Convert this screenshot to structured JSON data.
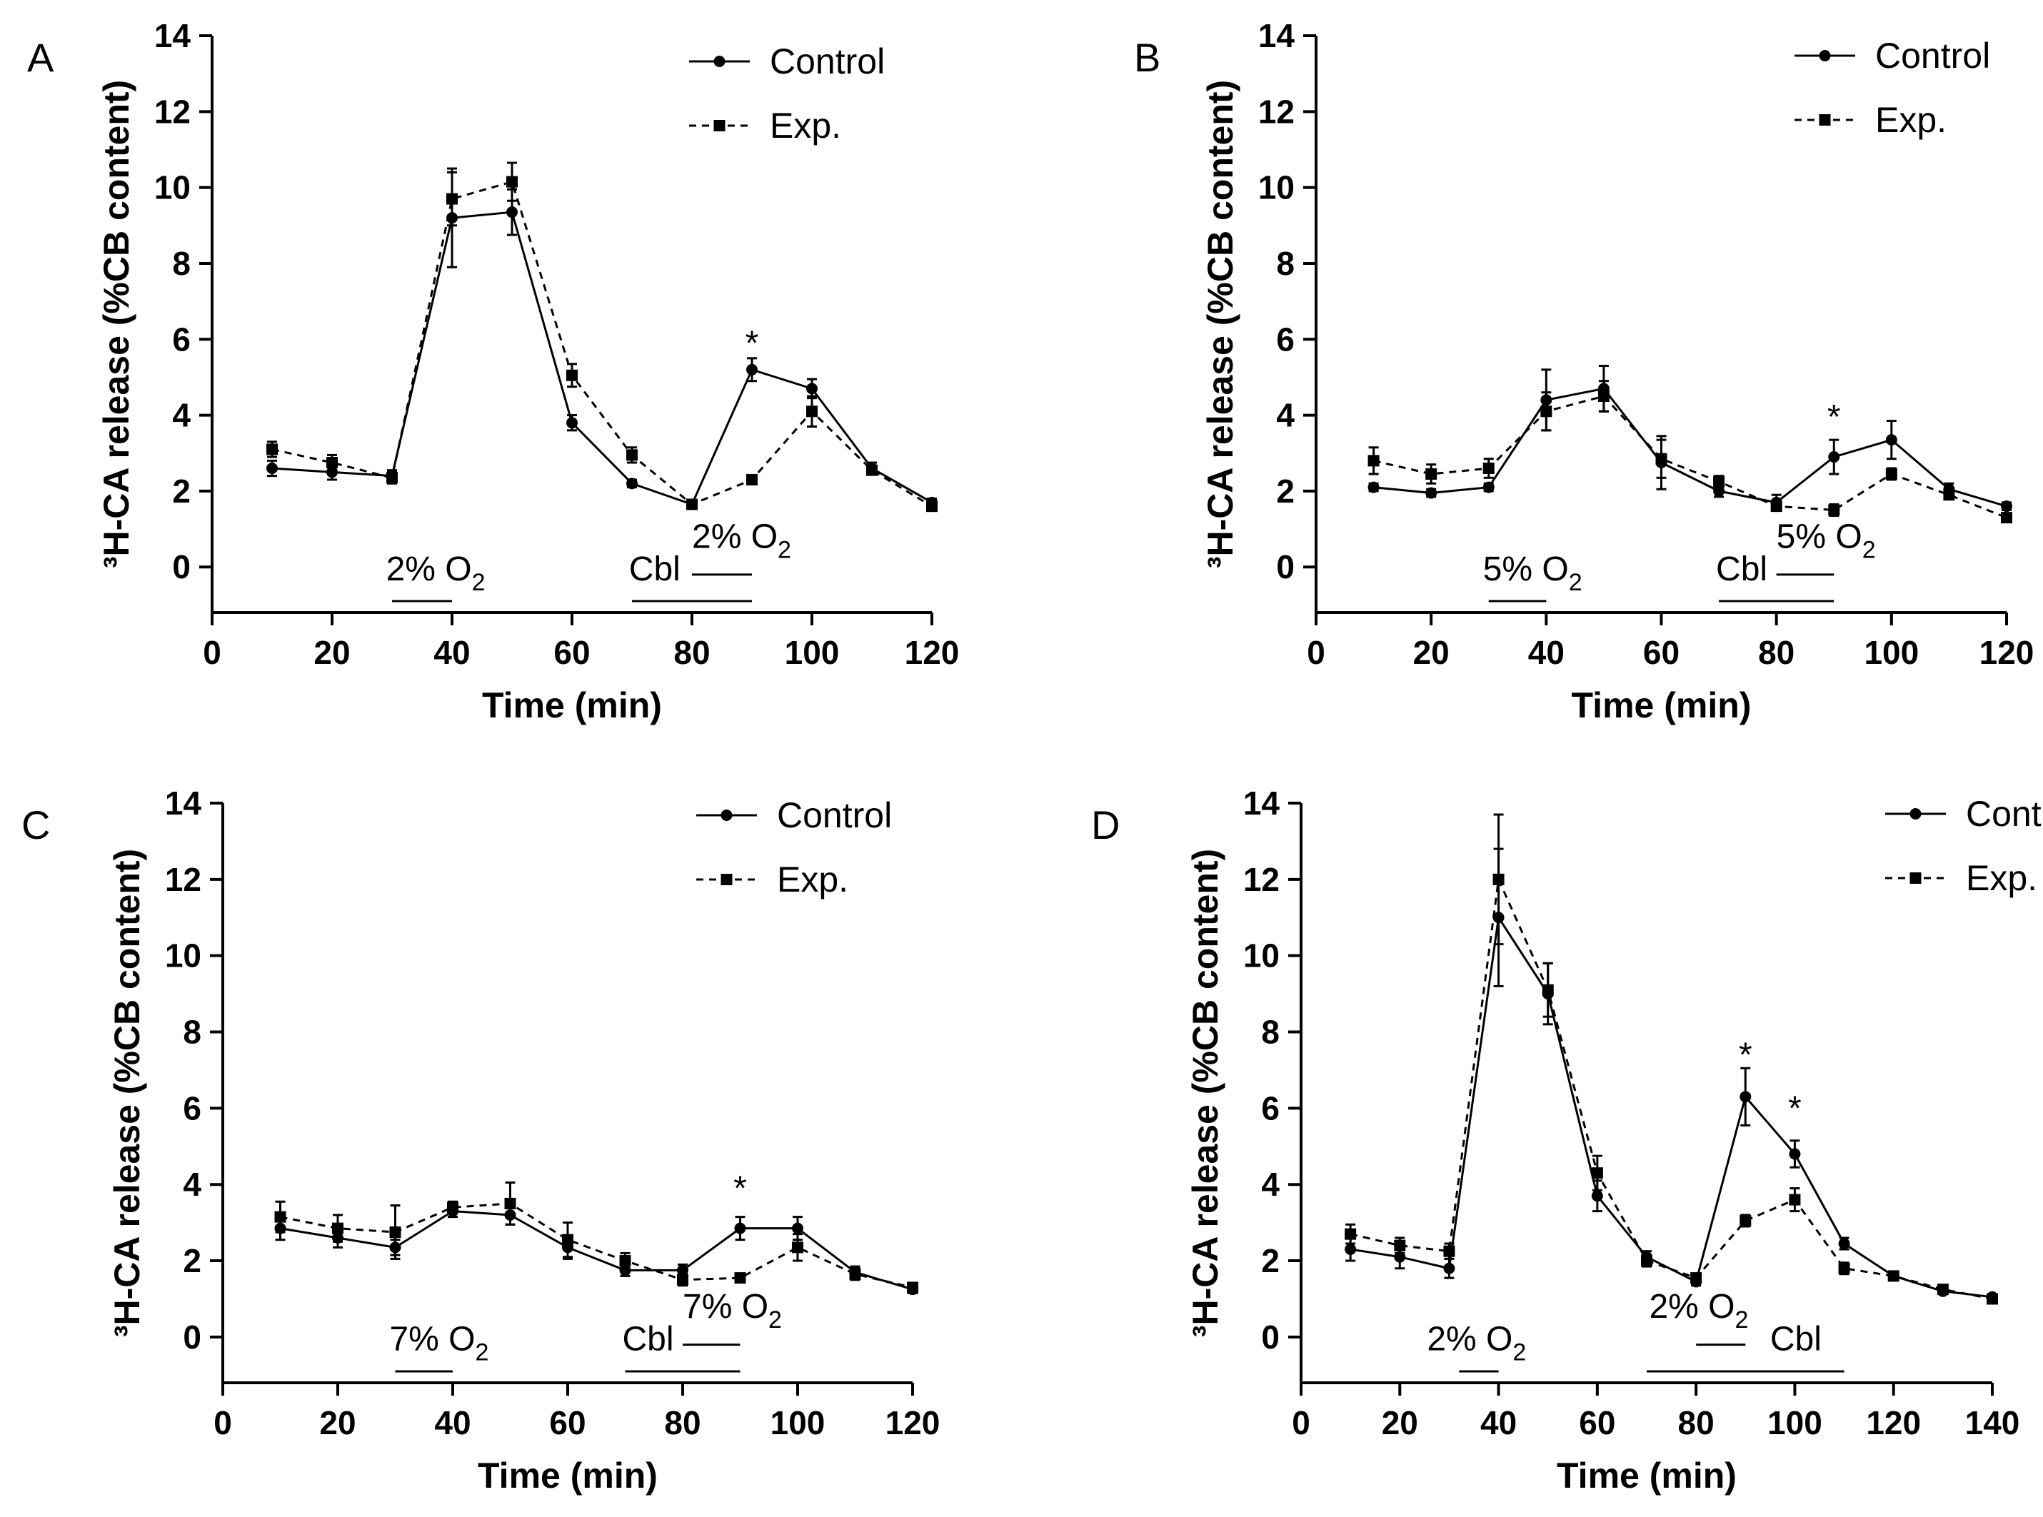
{
  "chart_data": [
    {
      "panel": "A",
      "type": "line",
      "xlabel": "Time (min)",
      "ylabel": "³H-CA release (%CB content)",
      "xlim": [
        0,
        120
      ],
      "ylim": [
        -1.2,
        14
      ],
      "xticks": [
        0,
        20,
        40,
        60,
        80,
        100,
        120
      ],
      "yticks": [
        0,
        2,
        4,
        6,
        8,
        10,
        12,
        14
      ],
      "x": [
        10,
        20,
        30,
        40,
        50,
        60,
        70,
        80,
        90,
        100,
        110,
        120
      ],
      "series": [
        {
          "name": "Control",
          "style": "solid",
          "marker": "circle",
          "values": [
            2.6,
            2.5,
            2.4,
            9.2,
            9.35,
            3.8,
            2.2,
            1.65,
            5.2,
            4.7,
            2.6,
            1.7
          ],
          "errors": [
            0.2,
            0.2,
            0.15,
            1.3,
            0.6,
            0.2,
            0.1,
            0.05,
            0.3,
            0.25,
            0.15,
            0.1
          ]
        },
        {
          "name": "Exp.",
          "style": "dashed",
          "marker": "square",
          "values": [
            3.1,
            2.75,
            2.35,
            9.7,
            10.15,
            5.05,
            2.95,
            1.65,
            2.3,
            4.1,
            2.55,
            1.6
          ],
          "errors": [
            0.2,
            0.2,
            0.15,
            0.7,
            0.5,
            0.3,
            0.2,
            0.05,
            0.1,
            0.4,
            0.1,
            0.1
          ]
        }
      ],
      "stars": [
        {
          "x": 90,
          "y": 5.9
        }
      ],
      "bars": [
        {
          "x0": 30,
          "x1": 40,
          "y": -0.9,
          "label": "2% O",
          "sub": "2",
          "lx": 29,
          "ly": -0.35
        },
        {
          "x0": 70,
          "x1": 90,
          "y": -0.9,
          "label": "Cbl",
          "sub": "",
          "lx": 69.5,
          "ly": -0.35
        },
        {
          "x0": 80,
          "x1": 90,
          "y": -0.2,
          "label": "2% O",
          "sub": "2",
          "lx": 80,
          "ly": 0.5
        }
      ]
    },
    {
      "panel": "B",
      "type": "line",
      "xlabel": "Time (min)",
      "ylabel": "³H-CA release (%CB content)",
      "xlim": [
        0,
        120
      ],
      "ylim": [
        -1.2,
        14
      ],
      "xticks": [
        0,
        20,
        40,
        60,
        80,
        100,
        120
      ],
      "yticks": [
        0,
        2,
        4,
        6,
        8,
        10,
        12,
        14
      ],
      "x": [
        10,
        20,
        30,
        40,
        50,
        60,
        70,
        80,
        90,
        100,
        110,
        120
      ],
      "series": [
        {
          "name": "Control",
          "style": "solid",
          "marker": "circle",
          "values": [
            2.1,
            1.95,
            2.1,
            4.4,
            4.7,
            2.75,
            2.0,
            1.7,
            2.9,
            3.35,
            2.05,
            1.6
          ],
          "errors": [
            0.1,
            0.1,
            0.1,
            0.8,
            0.6,
            0.7,
            0.15,
            0.2,
            0.45,
            0.5,
            0.15,
            0.1
          ]
        },
        {
          "name": "Exp.",
          "style": "dashed",
          "marker": "square",
          "values": [
            2.8,
            2.45,
            2.6,
            4.1,
            4.5,
            2.85,
            2.25,
            1.6,
            1.5,
            2.45,
            1.9,
            1.3
          ],
          "errors": [
            0.35,
            0.25,
            0.25,
            0.5,
            0.4,
            0.5,
            0.15,
            0.1,
            0.15,
            0.15,
            0.1,
            0.1
          ]
        }
      ],
      "stars": [
        {
          "x": 90,
          "y": 3.95
        }
      ],
      "bars": [
        {
          "x0": 30,
          "x1": 40,
          "y": -0.9,
          "label": "5% O",
          "sub": "2",
          "lx": 29,
          "ly": -0.35
        },
        {
          "x0": 70,
          "x1": 90,
          "y": -0.9,
          "label": "Cbl",
          "sub": "",
          "lx": 69.5,
          "ly": -0.35
        },
        {
          "x0": 80,
          "x1": 90,
          "y": -0.2,
          "label": "5% O",
          "sub": "2",
          "lx": 80,
          "ly": 0.5
        }
      ]
    },
    {
      "panel": "C",
      "type": "line",
      "xlabel": "Time (min)",
      "ylabel": "³H-CA release (%CB content)",
      "xlim": [
        0,
        120
      ],
      "ylim": [
        -1.2,
        14
      ],
      "xticks": [
        0,
        20,
        40,
        60,
        80,
        100,
        120
      ],
      "yticks": [
        0,
        2,
        4,
        6,
        8,
        10,
        12,
        14
      ],
      "x": [
        10,
        20,
        30,
        40,
        50,
        60,
        70,
        80,
        90,
        100,
        110,
        120
      ],
      "series": [
        {
          "name": "Control",
          "style": "solid",
          "marker": "circle",
          "values": [
            2.85,
            2.6,
            2.35,
            3.3,
            3.2,
            2.35,
            1.75,
            1.75,
            2.85,
            2.85,
            1.7,
            1.25
          ],
          "errors": [
            0.3,
            0.25,
            0.2,
            0.15,
            0.25,
            0.3,
            0.15,
            0.15,
            0.3,
            0.3,
            0.15,
            0.1
          ]
        },
        {
          "name": "Exp.",
          "style": "dashed",
          "marker": "square",
          "values": [
            3.15,
            2.85,
            2.75,
            3.4,
            3.5,
            2.55,
            2.0,
            1.5,
            1.55,
            2.35,
            1.65,
            1.3
          ],
          "errors": [
            0.4,
            0.35,
            0.7,
            0.15,
            0.55,
            0.45,
            0.2,
            0.15,
            0.1,
            0.35,
            0.15,
            0.1
          ]
        }
      ],
      "stars": [
        {
          "x": 90,
          "y": 3.9
        }
      ],
      "bars": [
        {
          "x0": 30,
          "x1": 40,
          "y": -0.9,
          "label": "7% O",
          "sub": "2",
          "lx": 29,
          "ly": -0.35
        },
        {
          "x0": 70,
          "x1": 90,
          "y": -0.9,
          "label": "Cbl",
          "sub": "",
          "lx": 69.5,
          "ly": -0.35
        },
        {
          "x0": 80,
          "x1": 90,
          "y": -0.2,
          "label": "7% O",
          "sub": "2",
          "lx": 80,
          "ly": 0.5
        }
      ]
    },
    {
      "panel": "D",
      "type": "line",
      "xlabel": "Time (min)",
      "ylabel": "³H-CA release (%CB content)",
      "xlim": [
        0,
        140
      ],
      "ylim": [
        -1.2,
        14
      ],
      "xticks": [
        0,
        20,
        40,
        60,
        80,
        100,
        120,
        140
      ],
      "yticks": [
        0,
        2,
        4,
        6,
        8,
        10,
        12,
        14
      ],
      "x": [
        10,
        20,
        30,
        40,
        50,
        60,
        70,
        80,
        90,
        100,
        110,
        120,
        130,
        140
      ],
      "series": [
        {
          "name": "Control",
          "style": "solid",
          "marker": "circle",
          "values": [
            2.3,
            2.1,
            1.8,
            11.0,
            9.0,
            3.7,
            2.1,
            1.45,
            6.3,
            4.8,
            2.45,
            1.6,
            1.2,
            1.05
          ],
          "errors": [
            0.3,
            0.3,
            0.25,
            1.8,
            0.8,
            0.4,
            0.15,
            0.1,
            0.75,
            0.35,
            0.15,
            0.05,
            0.05,
            0.05
          ]
        },
        {
          "name": "Exp.",
          "style": "dashed",
          "marker": "square",
          "values": [
            2.7,
            2.4,
            2.25,
            12.0,
            9.1,
            4.3,
            2.0,
            1.55,
            3.05,
            3.6,
            1.8,
            1.6,
            1.25,
            1.0
          ],
          "errors": [
            0.25,
            0.2,
            0.2,
            1.7,
            0.7,
            0.45,
            0.15,
            0.1,
            0.15,
            0.3,
            0.15,
            0.05,
            0.05,
            0.05
          ]
        }
      ],
      "stars": [
        {
          "x": 90,
          "y": 7.4
        },
        {
          "x": 100,
          "y": 6.0
        }
      ],
      "bars": [
        {
          "x0": 32,
          "x1": 40,
          "y": -0.9,
          "label": "2% O",
          "sub": "2",
          "lx": 25.5,
          "ly": -0.35
        },
        {
          "x0": 70,
          "x1": 110,
          "y": -0.9,
          "label": "Cbl",
          "sub": "",
          "lx": 95,
          "ly": -0.35
        },
        {
          "x0": 80,
          "x1": 90,
          "y": -0.2,
          "label": "2% O",
          "sub": "2",
          "lx": 70.5,
          "ly": 0.5
        }
      ]
    }
  ],
  "legend": {
    "control_label": "Control",
    "exp_label": "Exp."
  },
  "colors": {
    "line": "#000000",
    "background": "#ffffff"
  }
}
